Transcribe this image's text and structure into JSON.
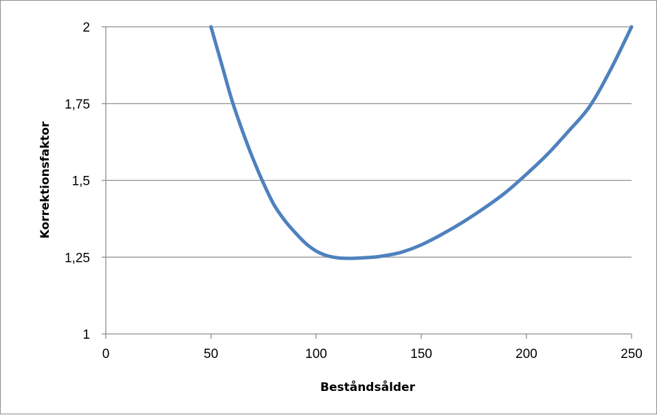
{
  "chart_data": {
    "type": "line",
    "title": "",
    "xlabel": "Beståndsålder",
    "ylabel": "Korrektionsfaktor",
    "xlim": [
      0,
      250
    ],
    "ylim": [
      1,
      2
    ],
    "x_ticks": [
      0,
      50,
      100,
      150,
      200,
      250
    ],
    "y_ticks": [
      1,
      1.25,
      1.5,
      1.75,
      2
    ],
    "x_tick_labels": [
      "0",
      "50",
      "100",
      "150",
      "200",
      "250"
    ],
    "y_tick_labels": [
      "1",
      "1,25",
      "1,5",
      "1,75",
      "2"
    ],
    "grid": {
      "horizontal": true,
      "vertical": false
    },
    "legend": "none",
    "series": [
      {
        "color": "#4f81bd",
        "x": [
          50,
          55,
          60,
          65,
          70,
          75,
          80,
          85,
          90,
          95,
          100,
          105,
          110,
          115,
          120,
          125,
          130,
          140,
          150,
          160,
          170,
          180,
          190,
          200,
          210,
          220,
          230,
          240,
          250
        ],
        "y": [
          2.0,
          1.88,
          1.76,
          1.66,
          1.57,
          1.49,
          1.42,
          1.37,
          1.33,
          1.295,
          1.27,
          1.255,
          1.248,
          1.246,
          1.247,
          1.249,
          1.252,
          1.265,
          1.29,
          1.325,
          1.365,
          1.41,
          1.46,
          1.52,
          1.585,
          1.66,
          1.74,
          1.86,
          2.0
        ]
      }
    ]
  }
}
